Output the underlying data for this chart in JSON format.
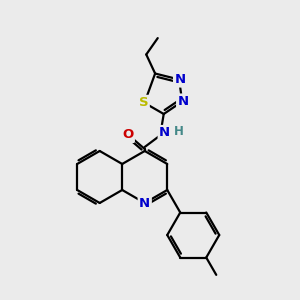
{
  "bg_color": "#ebebeb",
  "atom_colors": {
    "C": "#000000",
    "N": "#0000cc",
    "O": "#cc0000",
    "S": "#bbbb00",
    "H": "#448888"
  },
  "bond_color": "#000000",
  "bond_lw": 1.6,
  "figsize": [
    3.0,
    3.0
  ],
  "dpi": 100
}
